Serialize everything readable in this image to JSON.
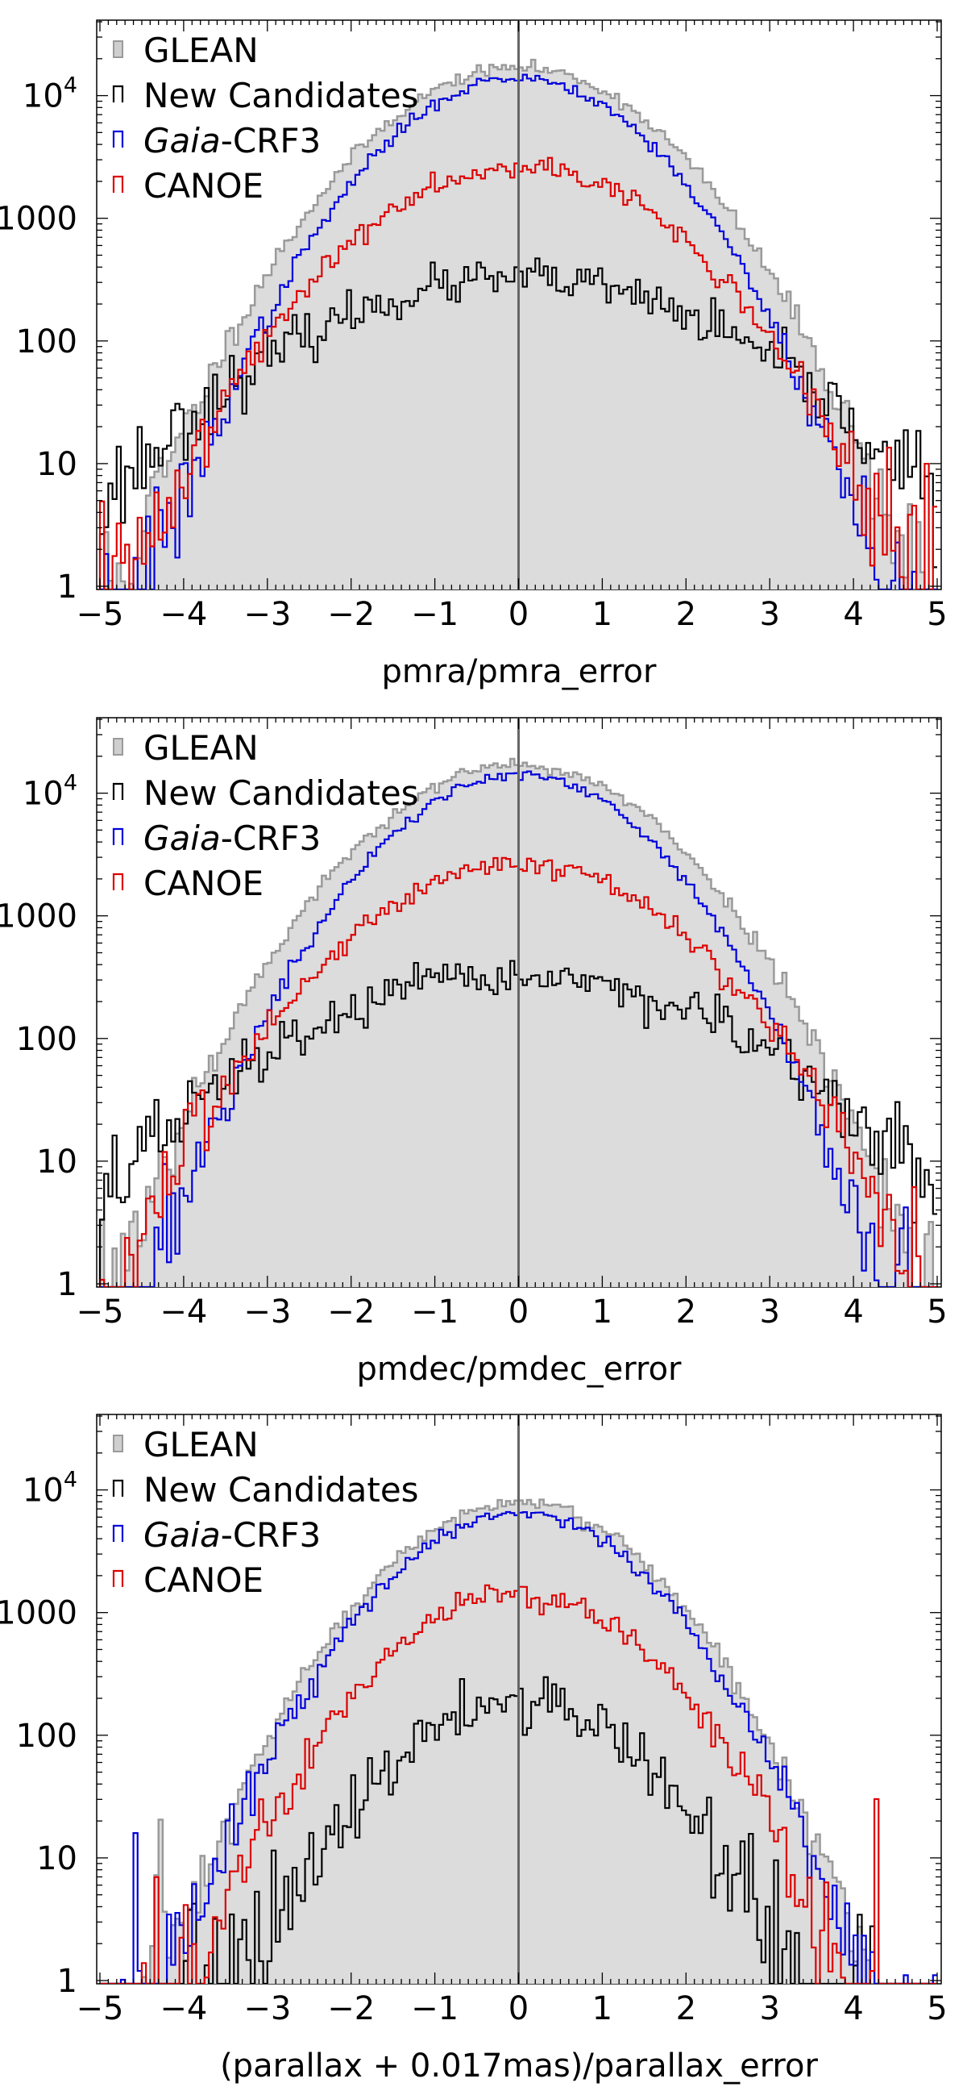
{
  "figure": {
    "panels": [
      {
        "xlabel": "pmra/pmra_error"
      },
      {
        "xlabel": "pmdec/pmdec_error"
      },
      {
        "xlabel": "(parallax + 0.017mas)/parallax_error"
      }
    ]
  },
  "chart_data": [
    {
      "type": "histogram",
      "title": "",
      "xlabel": "pmra/pmra_error",
      "ylabel": "",
      "yscale": "log",
      "xlim": [
        -5,
        5
      ],
      "ylim": [
        1,
        40000
      ],
      "xticks": [
        -5,
        -4,
        -3,
        -2,
        -1,
        0,
        1,
        2,
        3,
        4,
        5
      ],
      "xtick_labels": [
        "−5",
        "−4",
        "−3",
        "−2",
        "−1",
        "0",
        "1",
        "2",
        "3",
        "4",
        "5"
      ],
      "yticks": [
        1,
        10,
        100,
        1000,
        10000
      ],
      "ytick_labels": [
        "1",
        "10",
        "100",
        "1000",
        "10^4"
      ],
      "vertical_line_x": 0,
      "legend_position": "top-left",
      "bin_count": 200,
      "series": [
        {
          "name": "GLEAN",
          "style": "filled",
          "color": "#dcdcdc",
          "edge": "#9a9a9a",
          "peak": 17000,
          "sigma": 1.08,
          "noise": 0.05,
          "floor": 1,
          "seed": 11
        },
        {
          "name": "New Candidates",
          "style": "step",
          "color": "#000000",
          "peak": 320,
          "sigma": 1.72,
          "noise": 0.14,
          "floor": 1,
          "seed": 23
        },
        {
          "name": "Gaia-CRF3",
          "style": "step",
          "color": "#0000dd",
          "peak": 14000,
          "sigma": 1.0,
          "noise": 0.05,
          "floor": 1,
          "seed": 37
        },
        {
          "name": "CANOE",
          "style": "step",
          "color": "#dd0000",
          "peak": 2700,
          "sigma": 1.18,
          "noise": 0.08,
          "floor": 1,
          "seed": 41
        }
      ]
    },
    {
      "type": "histogram",
      "title": "",
      "xlabel": "pmdec/pmdec_error",
      "ylabel": "",
      "yscale": "log",
      "xlim": [
        -5,
        5
      ],
      "ylim": [
        1,
        40000
      ],
      "xticks": [
        -5,
        -4,
        -3,
        -2,
        -1,
        0,
        1,
        2,
        3,
        4,
        5
      ],
      "xtick_labels": [
        "−5",
        "−4",
        "−3",
        "−2",
        "−1",
        "0",
        "1",
        "2",
        "3",
        "4",
        "5"
      ],
      "yticks": [
        1,
        10,
        100,
        1000,
        10000
      ],
      "ytick_labels": [
        "1",
        "10",
        "100",
        "1000",
        "10^4"
      ],
      "vertical_line_x": 0,
      "legend_position": "top-left",
      "bin_count": 200,
      "series": [
        {
          "name": "GLEAN",
          "style": "filled",
          "color": "#dcdcdc",
          "edge": "#9a9a9a",
          "peak": 17000,
          "sigma": 1.1,
          "noise": 0.05,
          "floor": 1,
          "seed": 53
        },
        {
          "name": "New Candidates",
          "style": "step",
          "color": "#000000",
          "peak": 320,
          "sigma": 1.75,
          "noise": 0.14,
          "floor": 1,
          "seed": 67
        },
        {
          "name": "Gaia-CRF3",
          "style": "step",
          "color": "#0000dd",
          "peak": 14000,
          "sigma": 1.0,
          "noise": 0.05,
          "floor": 1,
          "seed": 71
        },
        {
          "name": "CANOE",
          "style": "step",
          "color": "#dd0000",
          "peak": 2700,
          "sigma": 1.2,
          "noise": 0.08,
          "floor": 1,
          "seed": 83
        }
      ]
    },
    {
      "type": "histogram",
      "title": "",
      "xlabel": "(parallax + 0.017mas)/parallax_error",
      "ylabel": "",
      "yscale": "log",
      "xlim": [
        -5,
        5
      ],
      "ylim": [
        1,
        40000
      ],
      "xticks": [
        -5,
        -4,
        -3,
        -2,
        -1,
        0,
        1,
        2,
        3,
        4,
        5
      ],
      "xtick_labels": [
        "−5",
        "−4",
        "−3",
        "−2",
        "−1",
        "0",
        "1",
        "2",
        "3",
        "4",
        "5"
      ],
      "yticks": [
        1,
        10,
        100,
        1000,
        10000
      ],
      "ytick_labels": [
        "1",
        "10",
        "100",
        "1000",
        "10^4"
      ],
      "vertical_line_x": 0,
      "legend_position": "top-left",
      "bin_count": 200,
      "series": [
        {
          "name": "GLEAN",
          "style": "filled",
          "color": "#dcdcdc",
          "edge": "#9a9a9a",
          "peak": 7800,
          "sigma": 1.0,
          "noise": 0.06,
          "floor": 1,
          "seed": 97
        },
        {
          "name": "New Candidates",
          "style": "step",
          "color": "#000000",
          "peak": 190,
          "sigma": 1.0,
          "noise": 0.2,
          "floor": 1,
          "seed": 101
        },
        {
          "name": "Gaia-CRF3",
          "style": "step",
          "color": "#0000dd",
          "peak": 6500,
          "sigma": 0.98,
          "noise": 0.06,
          "floor": 1,
          "seed": 113
        },
        {
          "name": "CANOE",
          "style": "step",
          "color": "#dd0000",
          "peak": 1400,
          "sigma": 1.02,
          "noise": 0.1,
          "floor": 1,
          "seed": 127
        }
      ]
    }
  ]
}
